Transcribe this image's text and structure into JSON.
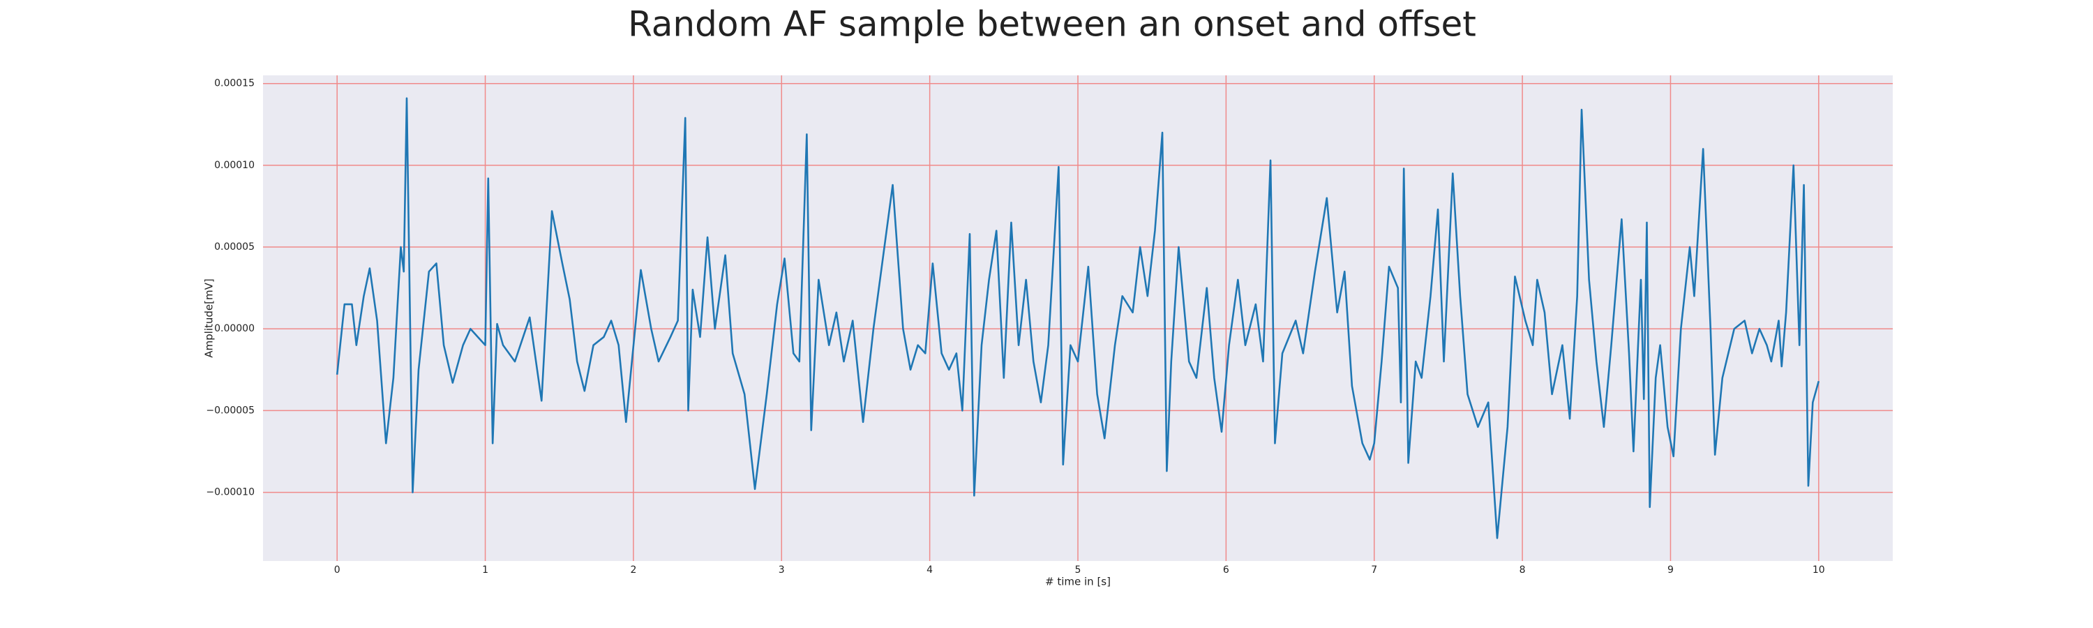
{
  "chart_data": {
    "type": "line",
    "title": "Random AF sample between an onset and offset",
    "xlabel": "# time in [s]",
    "ylabel": "Amplitude[mV]",
    "xlim": [
      -0.5,
      10.5
    ],
    "ylim": [
      -0.000142,
      0.000155
    ],
    "xticks": [
      0,
      1,
      2,
      3,
      4,
      5,
      6,
      7,
      8,
      9,
      10
    ],
    "yticks": [
      {
        "value": -0.0001,
        "label": "−0.00010"
      },
      {
        "value": -5e-05,
        "label": "−0.00005"
      },
      {
        "value": 0,
        "label": "0.00000"
      },
      {
        "value": 5e-05,
        "label": "0.00005"
      },
      {
        "value": 0.0001,
        "label": "0.00010"
      },
      {
        "value": 0.00015,
        "label": "0.00015"
      }
    ],
    "grid": true,
    "grid_color": "#f08a8a",
    "background": "#eaeaf2",
    "series": [
      {
        "color": "#1f77b4",
        "x": [
          0,
          0.05,
          0.1,
          0.13,
          0.18,
          0.22,
          0.27,
          0.33,
          0.38,
          0.43,
          0.45,
          0.47,
          0.51,
          0.55,
          0.62,
          0.67,
          0.72,
          0.78,
          0.85,
          0.9,
          0.95,
          1.0,
          1.02,
          1.05,
          1.08,
          1.12,
          1.2,
          1.3,
          1.38,
          1.45,
          1.52,
          1.57,
          1.62,
          1.67,
          1.73,
          1.8,
          1.85,
          1.9,
          1.95,
          2.05,
          2.12,
          2.17,
          2.25,
          2.3,
          2.35,
          2.37,
          2.4,
          2.45,
          2.5,
          2.55,
          2.62,
          2.67,
          2.75,
          2.82,
          2.9,
          2.97,
          3.02,
          3.08,
          3.12,
          3.17,
          3.2,
          3.25,
          3.32,
          3.37,
          3.42,
          3.48,
          3.55,
          3.62,
          3.75,
          3.82,
          3.87,
          3.92,
          3.97,
          4.02,
          4.08,
          4.13,
          4.18,
          4.22,
          4.27,
          4.3,
          4.35,
          4.4,
          4.45,
          4.5,
          4.55,
          4.6,
          4.65,
          4.7,
          4.75,
          4.8,
          4.87,
          4.9,
          4.95,
          5.0,
          5.07,
          5.13,
          5.18,
          5.25,
          5.3,
          5.37,
          5.42,
          5.47,
          5.52,
          5.57,
          5.6,
          5.63,
          5.68,
          5.75,
          5.8,
          5.87,
          5.92,
          5.97,
          6.02,
          6.08,
          6.13,
          6.2,
          6.25,
          6.3,
          6.33,
          6.38,
          6.47,
          6.52,
          6.6,
          6.68,
          6.75,
          6.8,
          6.85,
          6.92,
          6.97,
          7.0,
          7.05,
          7.1,
          7.16,
          7.18,
          7.2,
          7.23,
          7.28,
          7.32,
          7.38,
          7.43,
          7.47,
          7.53,
          7.58,
          7.63,
          7.7,
          7.77,
          7.83,
          7.9,
          7.95,
          8.02,
          8.07,
          8.1,
          8.15,
          8.2,
          8.27,
          8.32,
          8.37,
          8.4,
          8.45,
          8.5,
          8.55,
          8.6,
          8.67,
          8.72,
          8.75,
          8.8,
          8.82,
          8.84,
          8.86,
          8.9,
          8.93,
          8.98,
          9.02,
          9.07,
          9.13,
          9.16,
          9.22,
          9.27,
          9.3,
          9.35,
          9.43,
          9.5,
          9.55,
          9.6,
          9.65,
          9.68,
          9.7,
          9.73,
          9.75,
          9.78,
          9.83,
          9.87,
          9.9,
          9.93,
          9.96,
          10.0
        ],
        "values": [
          -2.8e-05,
          1.5e-05,
          1.5e-05,
          -1e-05,
          2e-05,
          3.7e-05,
          5e-06,
          -7e-05,
          -3e-05,
          5e-05,
          3.5e-05,
          0.000141,
          -0.0001,
          -2.5e-05,
          3.5e-05,
          4e-05,
          -1e-05,
          -3.3e-05,
          -1e-05,
          0,
          -5e-06,
          -1e-05,
          9.2e-05,
          -7e-05,
          3e-06,
          -1e-05,
          -2e-05,
          7e-06,
          -4.4e-05,
          7.2e-05,
          4e-05,
          1.8e-05,
          -2e-05,
          -3.8e-05,
          -1e-05,
          -5e-06,
          5e-06,
          -1e-05,
          -5.7e-05,
          3.6e-05,
          0,
          -2e-05,
          -5e-06,
          5e-06,
          0.000129,
          -5e-05,
          2.4e-05,
          -5e-06,
          5.6e-05,
          0,
          4.5e-05,
          -1.5e-05,
          -4e-05,
          -9.8e-05,
          -4e-05,
          1.5e-05,
          4.3e-05,
          -1.5e-05,
          -2e-05,
          0.000119,
          -6.2e-05,
          3e-05,
          -1e-05,
          1e-05,
          -2e-05,
          5e-06,
          -5.7e-05,
          0,
          8.8e-05,
          0,
          -2.5e-05,
          -1e-05,
          -1.5e-05,
          4e-05,
          -1.5e-05,
          -2.5e-05,
          -1.5e-05,
          -5e-05,
          5.8e-05,
          -0.000102,
          -1e-05,
          3e-05,
          6e-05,
          -3e-05,
          6.5e-05,
          -1e-05,
          3e-05,
          -2e-05,
          -4.5e-05,
          -1e-05,
          9.9e-05,
          -8.3e-05,
          -1e-05,
          -2e-05,
          3.8e-05,
          -4e-05,
          -6.7e-05,
          -1e-05,
          2e-05,
          1e-05,
          5e-05,
          2e-05,
          6e-05,
          0.00012,
          -8.7e-05,
          -2e-05,
          5e-05,
          -2e-05,
          -3e-05,
          2.5e-05,
          -3e-05,
          -6.3e-05,
          -1e-05,
          3e-05,
          -1e-05,
          1.5e-05,
          -2e-05,
          0.000103,
          -7e-05,
          -1.5e-05,
          5e-06,
          -1.5e-05,
          3.5e-05,
          8e-05,
          1e-05,
          3.5e-05,
          -3.5e-05,
          -7e-05,
          -8e-05,
          -7e-05,
          -2e-05,
          3.8e-05,
          2.5e-05,
          -4.5e-05,
          9.8e-05,
          -8.2e-05,
          -2e-05,
          -3e-05,
          2e-05,
          7.3e-05,
          -2e-05,
          9.5e-05,
          2e-05,
          -4e-05,
          -6e-05,
          -4.5e-05,
          -0.000128,
          -6e-05,
          3.2e-05,
          5e-06,
          -1e-05,
          3e-05,
          1e-05,
          -4e-05,
          -1e-05,
          -5.5e-05,
          2e-05,
          0.000134,
          3e-05,
          -2e-05,
          -6e-05,
          -1e-05,
          6.7e-05,
          -1.5e-05,
          -7.5e-05,
          3e-05,
          -4.3e-05,
          6.5e-05,
          -0.000109,
          -3e-05,
          -1e-05,
          -6e-05,
          -7.8e-05,
          0,
          5e-05,
          2e-05,
          0.00011,
          0,
          -7.7e-05,
          -3e-05,
          0,
          5e-06,
          -1.5e-05,
          0,
          -1e-05,
          -2e-05,
          -1e-05,
          5e-06,
          -2.3e-05,
          1e-05,
          0.0001,
          -1e-05,
          8.8e-05,
          -9.6e-05,
          -4.5e-05,
          -3.2e-05
        ]
      }
    ]
  }
}
